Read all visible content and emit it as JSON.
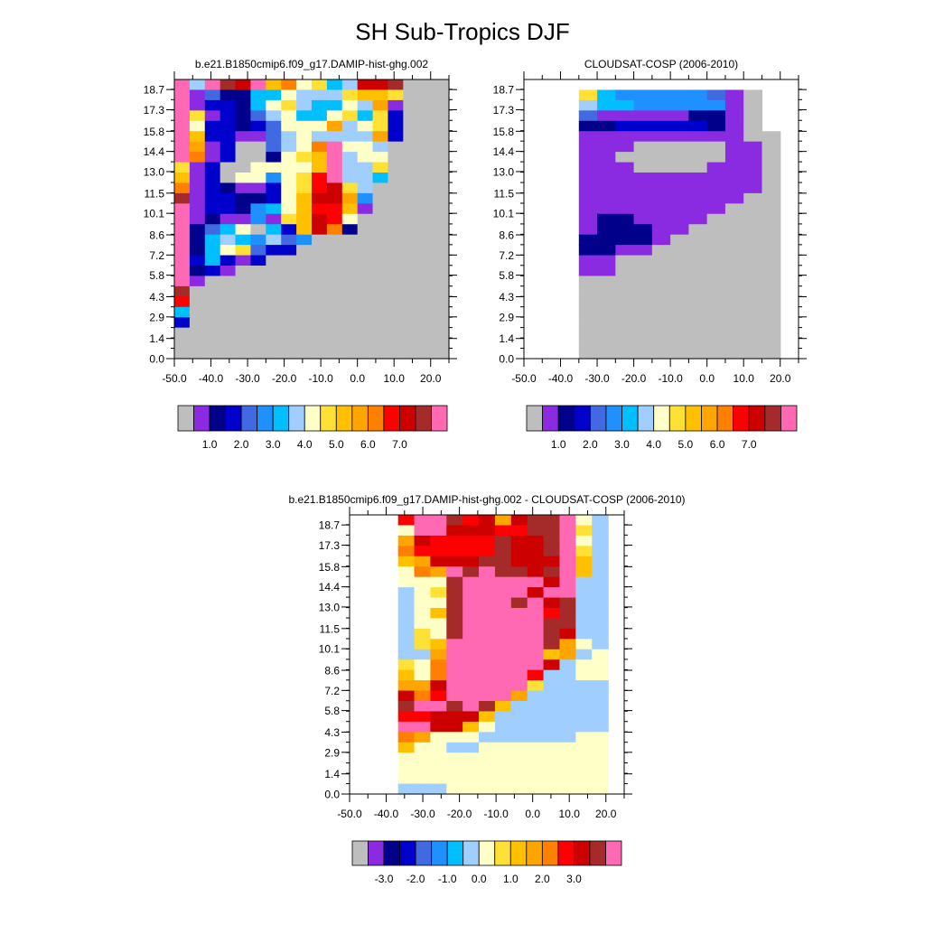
{
  "figure_title": "SH Sub-Tropics DJF",
  "palette": [
    "#bebebe",
    "#8a2be2",
    "#00008b",
    "#0000cd",
    "#4169e1",
    "#1e90ff",
    "#00bfff",
    "#a0cfff",
    "#ffffc8",
    "#ffe135",
    "#ffc000",
    "#ffa500",
    "#ff7f00",
    "#ff0000",
    "#cd0000",
    "#a52a2a",
    "#ff69b4"
  ],
  "chart_data": [
    {
      "type": "heatmap",
      "title": "b.e21.B1850cmip6.f09_g17.DAMIP-hist-ghg.002",
      "xlabel": "",
      "ylabel": "",
      "x_ticks": [
        "-50.0",
        "-40.0",
        "-30.0",
        "-20.0",
        "-10.0",
        "0.0",
        "10.0",
        "20.0"
      ],
      "y_ticks": [
        "0.0",
        "1.4",
        "2.9",
        "4.3",
        "5.8",
        "7.2",
        "8.6",
        "10.1",
        "11.5",
        "13.0",
        "14.4",
        "15.8",
        "17.3",
        "18.7"
      ],
      "xlim": [
        -50,
        25
      ],
      "ylim": [
        0,
        19.4
      ],
      "colorbar_labels": [
        "1.0",
        "2.0",
        "3.0",
        "4.0",
        "5.0",
        "6.0",
        "7.0"
      ],
      "rows": [
        "QHQPOQKMIJGHOOPAAA",
        "QBECCGGIHHHJKKJAAA",
        "QBDDCGIJHGGIHLBAAA",
        "QJBDCEHIGGIJGJDAAA",
        "QIDDCDEIIILHIJDAAA",
        "QKDDBBEHIHHHHLDAAA",
        "QLBDAAEHIMQIIHAAAA",
        "QMBDAACIJKQHIIAAAA",
        "JBDAAIIIIKQHHJAAAA",
        "KBDAIIFIJNQHHGAAAA",
        "MBDCBBDIJNOJHAAAAA",
        "PBDDCCDIKOOLFAAAAA",
        "QBDDCFGIKNNKBAAAAA",
        "QBCBBFBJKONIAAAAAA",
        "QCEGIAGDKOMCAAAAAA",
        "QCGHGFHEFAAAAAAAAA",
        "QCGIJEDDAAAAAAAAAA",
        "QDGDBDAAAAAAAAAAAA",
        "QCDBAAAAAAAAAAAAAA",
        "QBAAAAAAAAAAAAAAAA",
        "PAAAAAAAAAAAAAAAAA",
        "NAAAAAAAAAAAAAAAAA",
        "GAAAAAAAAAAAAAAAAA",
        "DAAAAAAAAAAAAAAAAA",
        "AAAAAAAAAAAAAAAAAA",
        "AAAAAAAAAAAAAAAAAA",
        "AAAAAAAAAAAAAAAAAA"
      ]
    },
    {
      "type": "heatmap",
      "title": "CLOUDSAT-COSP (2006-2010)",
      "xlabel": "",
      "ylabel": "",
      "x_ticks": [
        "-50.0",
        "-40.0",
        "-30.0",
        "-20.0",
        "-10.0",
        "0.0",
        "10.0",
        "20.0"
      ],
      "y_ticks": [
        "0.0",
        "1.4",
        "2.9",
        "4.3",
        "5.8",
        "7.2",
        "8.6",
        "10.1",
        "11.5",
        "13.0",
        "14.4",
        "15.8",
        "17.3",
        "18.7"
      ],
      "xlim": [
        -50,
        25
      ],
      "ylim": [
        0,
        19.4
      ],
      "colorbar_labels": [
        "1.0",
        "2.0",
        "3.0",
        "4.0",
        "5.0",
        "6.0",
        "7.0"
      ],
      "rows": [
        "...............",
        "...JGFFFFFEBA..",
        "...HGGFFFFFBA..",
        "...EBBBBBCCBA..",
        "...CCDDDDDCBA..",
        "...BBBBBBBBBAA.",
        "...BBBAAAAABBA.",
        "...BBAAAAAABBA.",
        "...BBBAAAABBBA.",
        "...BBBBBBBBBBA.",
        "...BBBBBBBBBBA.",
        "...BBBBBBBBBAA.",
        "...BBBBBBBBAAA.",
        "...BCCBBBBAAAA.",
        "...BCCCBBAAAAA.",
        "...CCCCBAAAAAA.",
        "...CCBBAAAAAAA.",
        "...BBAAAAAAAAA.",
        "...BBAAAAAAAAA.",
        "...AAAAAAAAAAA.",
        "...AAAAAAAAAAA.",
        "...AAAAAAAAAAA.",
        "...AAAAAAAAAAA.",
        "...AAAAAAAAAAA.",
        "...AAAAAAAAAAA.",
        "...AAAAAAAAAAA.",
        "...AAAAAAAAAAA."
      ]
    },
    {
      "type": "heatmap",
      "title": "b.e21.B1850cmip6.f09_g17.DAMIP-hist-ghg.002 - CLOUDSAT-COSP (2006-2010)",
      "xlabel": "",
      "ylabel": "",
      "x_ticks": [
        "-50.0",
        "-40.0",
        "-30.0",
        "-20.0",
        "-10.0",
        "0.0",
        "10.0",
        "20.0"
      ],
      "y_ticks": [
        "0.0",
        "1.4",
        "2.9",
        "4.3",
        "5.8",
        "7.2",
        "8.6",
        "10.1",
        "11.5",
        "13.0",
        "14.4",
        "15.8",
        "17.3",
        "18.7"
      ],
      "xlim": [
        -50,
        25
      ],
      "ylim": [
        0,
        19.4
      ],
      "colorbar_labels": [
        "-3.0",
        "-2.0",
        "-1.0",
        "0.0",
        "1.0",
        "2.0",
        "3.0"
      ],
      "rows": [
        "...NQQPNOLOPPQIH.",
        "...IQQOOONNPPQJH.",
        "...LONNNNPOOPQIH.",
        "...MNNNNNPOOPQJH.",
        "...KLOOOPPOOOQKH.",
        "...IMLQPQPPOPQKH.",
        "...IIIPQQQQQOQHH.",
        "...HIJPQQQQOQQHH.",
        "...HIIPQQQPQOPHH.",
        "...HIKPQQQQQNPHH.",
        "...HIIPQQQQQPPHH.",
        "...HJIPQQQQQPOHH.",
        "...HJKQQQQQQPLIH.",
        "...HHLQQQQQQKLHI.",
        "...JIMQQQQQQOHII.",
        "...KIMQQQQQNHHII.",
        "...LLOQQQQQJHHHH.",
        "...OMNQQQQLHHHHH.",
        "...PQQPQPKHHHHHH.",
        "...NNOOOKHHHHHHH.",
        "...QQOOKIHHHHHHH.",
        "...MLIIIHHHHHHII.",
        "...KIIHHIIIIIIII.",
        "...IIIIIIIIIIIII.",
        "...IIIIIIIIIIIII.",
        "...IIIIIIIIIIIII.",
        "...HHHIIIIIIIIII."
      ]
    }
  ]
}
